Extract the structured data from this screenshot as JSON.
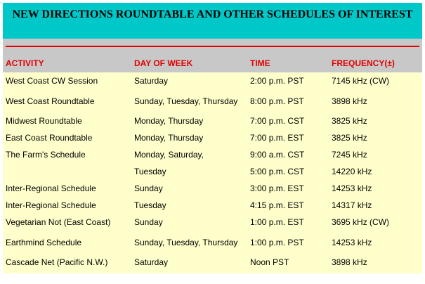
{
  "title": "NEW DIRECTIONS ROUNDTABLE AND OTHER SCHEDULES OF INTEREST",
  "colors": {
    "title_bg": "#00c8c8",
    "header_bg": "#c8c8c8",
    "header_text": "#e00000",
    "body_bg": "#ffffcc"
  },
  "columns": [
    "ACTIVITY",
    "DAY OF WEEK",
    "TIME",
    "FREQUENCY(±)"
  ],
  "rows": [
    [
      "West Coast CW Session",
      "Saturday",
      "2:00 p.m. PST",
      "7145 kHz (CW)"
    ],
    [
      "West Coast Roundtable",
      "Sunday, Tuesday, Thursday",
      "8:00 p.m. PST",
      "3898 kHz"
    ],
    [
      "Midwest Roundtable",
      "Monday, Thursday",
      "7:00 p.m. CST",
      "3825 kHz"
    ],
    [
      "East Coast Roundtable",
      "Monday, Thursday",
      "7:00 p.m. EST",
      "3825 kHz"
    ],
    [
      "The Farm's Schedule",
      "Monday, Saturday,",
      "9:00 a.m. CST",
      "7245 kHz"
    ],
    [
      "",
      "Tuesday",
      "5:00 p.m. CST",
      "14220 kHz"
    ],
    [
      "Inter-Regional Schedule",
      "Sunday",
      "3:00 p.m. EST",
      "14253 kHz"
    ],
    [
      "Inter-Regional Schedule",
      "Tuesday",
      "4:15 p.m. EST",
      "14317 kHz"
    ],
    [
      "Vegetarian Not (East Coast)",
      "Sunday",
      "1:00 p.m. EST",
      "3695 kHz (CW)"
    ],
    [
      "Earthmind Schedule",
      "Sunday, Tuesday, Thursday",
      "1:00 p.m. PST",
      "14253 kHz"
    ],
    [
      "Cascade Net (Pacific N.W.)",
      "Saturday",
      "Noon PST",
      "3898 kHz"
    ]
  ]
}
